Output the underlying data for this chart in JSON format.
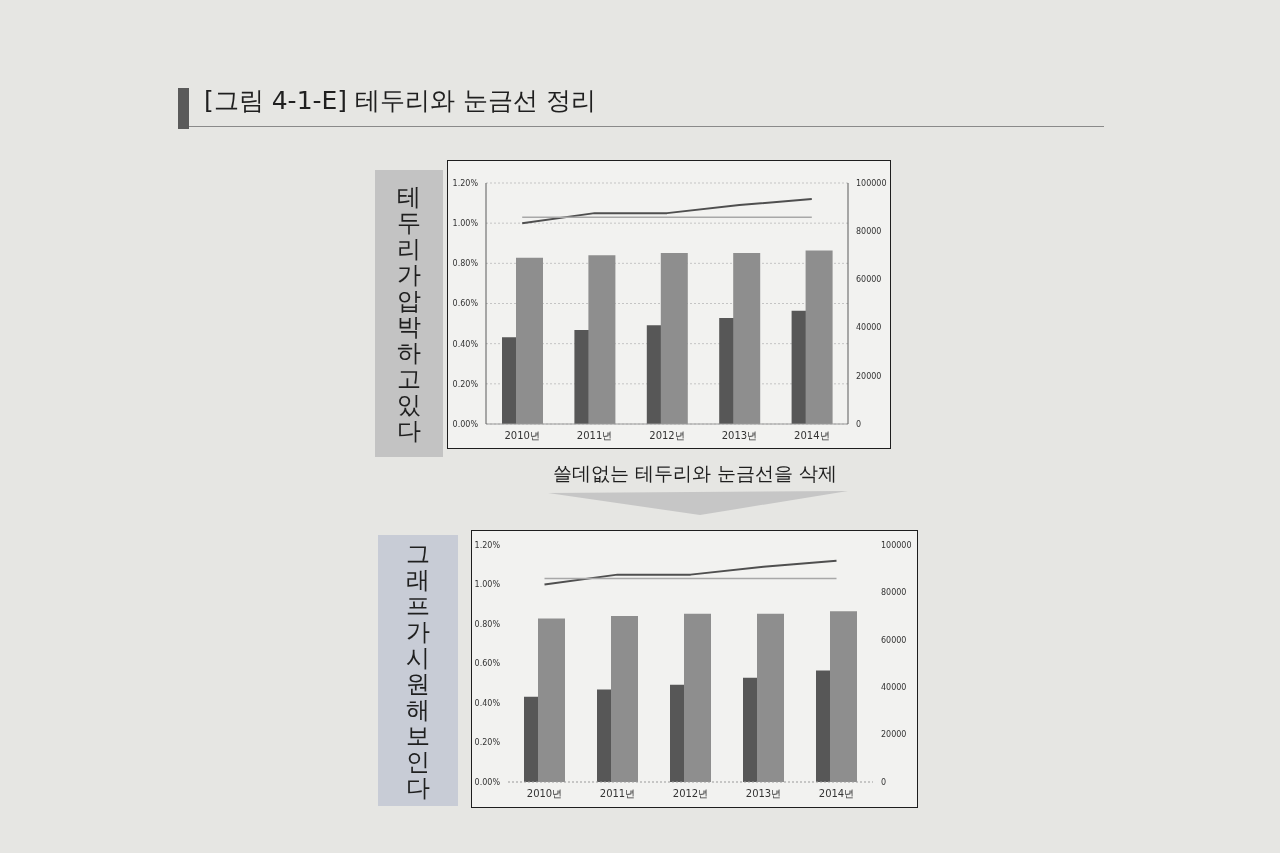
{
  "chart_data": [
    {
      "type": "bar",
      "title": "[그림 4-1-E] 테두리와 눈금선 정리",
      "annotations": [
        "테두리가 압박하고 있다"
      ],
      "categories": [
        "2010년",
        "2011년",
        "2012년",
        "2013년",
        "2014년"
      ],
      "series": [
        {
          "axis": "y2",
          "color": "#575757",
          "values": [
            36000,
            39000,
            41000,
            44000,
            47000
          ]
        },
        {
          "axis": "y2",
          "color": "#8e8e8e",
          "values": [
            69000,
            70000,
            71000,
            71000,
            72000
          ]
        },
        {
          "type": "line",
          "color": "#4f4f4f",
          "values": [
            1.0,
            1.05,
            1.05,
            1.09,
            1.12
          ]
        },
        {
          "type": "line",
          "color": "#a8a8a8",
          "values": [
            1.03,
            1.03,
            1.03,
            1.03,
            1.03
          ]
        }
      ],
      "ylim": [
        0,
        1.2
      ],
      "yticks": [
        {
          "value": 0,
          "label": "0.00%"
        },
        {
          "value": 0.2,
          "label": "0.20%"
        },
        {
          "value": 0.4,
          "label": "0.40%"
        },
        {
          "value": 0.6,
          "label": "0.60%"
        },
        {
          "value": 0.8,
          "label": "0.80%"
        },
        {
          "value": 1.0,
          "label": "1.00%"
        },
        {
          "value": 1.2,
          "label": "1.20%"
        }
      ],
      "y2lim": [
        0,
        100000
      ],
      "y2ticks": [
        0,
        20000,
        40000,
        60000,
        80000,
        100000
      ],
      "grid": "y"
    },
    {
      "type": "bar",
      "title": "쓸데없는 테두리와 눈금선을 삭제",
      "annotations": [
        "그래프가 시원해 보인다"
      ],
      "categories": [
        "2010년",
        "2011년",
        "2012년",
        "2013년",
        "2014년"
      ],
      "series": [
        {
          "axis": "y2",
          "color": "#575757",
          "values": [
            36000,
            39000,
            41000,
            44000,
            47000
          ]
        },
        {
          "axis": "y2",
          "color": "#8e8e8e",
          "values": [
            69000,
            70000,
            71000,
            71000,
            72000
          ]
        },
        {
          "type": "line",
          "color": "#4f4f4f",
          "values": [
            1.0,
            1.05,
            1.05,
            1.09,
            1.12
          ]
        },
        {
          "type": "line",
          "color": "#a8a8a8",
          "values": [
            1.03,
            1.03,
            1.03,
            1.03,
            1.03
          ]
        }
      ],
      "ylim": [
        0,
        1.2
      ],
      "yticks": [
        {
          "value": 0,
          "label": "0.00%"
        },
        {
          "value": 0.2,
          "label": "0.20%"
        },
        {
          "value": 0.4,
          "label": "0.40%"
        },
        {
          "value": 0.6,
          "label": "0.60%"
        },
        {
          "value": 0.8,
          "label": "0.80%"
        },
        {
          "value": 1.0,
          "label": "1.00%"
        },
        {
          "value": 1.2,
          "label": "1.20%"
        }
      ],
      "y2lim": [
        0,
        100000
      ],
      "y2ticks": [
        0,
        20000,
        40000,
        60000,
        80000,
        100000
      ]
    }
  ]
}
